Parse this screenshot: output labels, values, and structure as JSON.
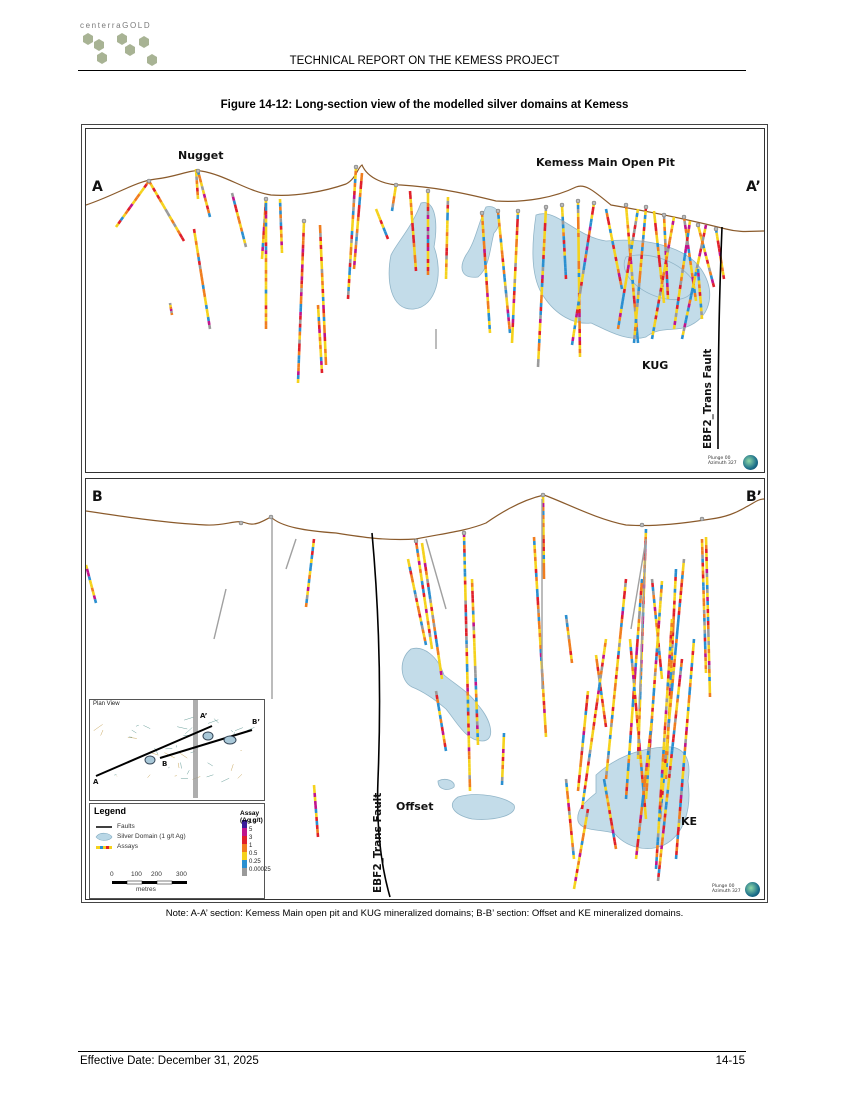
{
  "header": {
    "logo_text": "centerraGOLD",
    "title": "TECHNICAL REPORT ON THE KEMESS PROJECT"
  },
  "figure": {
    "caption": "Figure 14-12: Long-section view of the modelled silver domains at Kemess",
    "panel_a": {
      "left_label": "A",
      "right_label": "A’",
      "labels": {
        "nugget": "Nugget",
        "main_pit": "Kemess Main Open Pit",
        "kug": "KUG",
        "fault": "EBF2_Trans Fault"
      },
      "plunge": "Plunge 00",
      "azimuth": "Azimuth 327"
    },
    "panel_b": {
      "left_label": "B",
      "right_label": "B’",
      "labels": {
        "offset": "Offset",
        "ke": "KE",
        "fault": "EBF2_Trans Fault"
      },
      "plunge": "Plunge 00",
      "azimuth": "Azimuth 327",
      "inset": {
        "title": "Plan View",
        "labels": {
          "a": "A",
          "a_prime": "A’",
          "b": "B",
          "b_prime": "B’"
        }
      },
      "legend": {
        "title": "Legend",
        "items": {
          "faults": "Faults",
          "silver_domain": "Silver Domain (1 g/t Ag)",
          "assays": "Assays"
        },
        "scale_ticks": [
          "0",
          "100",
          "200",
          "300"
        ],
        "scale_unit": "metres",
        "assay_title": "Assay (Ag g/t)",
        "assay_values": [
          "10",
          "5",
          "3",
          "1",
          "0.5",
          "0.25",
          "0.00025"
        ],
        "assay_colors": [
          "#3a1a9a",
          "#c0148c",
          "#e0202a",
          "#f07d1e",
          "#f5d21c",
          "#2a8fd0",
          "#9a9a9a"
        ]
      }
    },
    "colors": {
      "topography": "#8a5a2b",
      "domain_fill": "#b9d7e6",
      "domain_stroke": "#7fa9bf"
    }
  },
  "note": "Note: A-A’ section: Kemess Main open pit and KUG mineralized domains; B-B’ section: Offset and KE mineralized domains.",
  "footer": {
    "effective_date": "Effective Date: December 31, 2025",
    "page_number": "14-15"
  }
}
